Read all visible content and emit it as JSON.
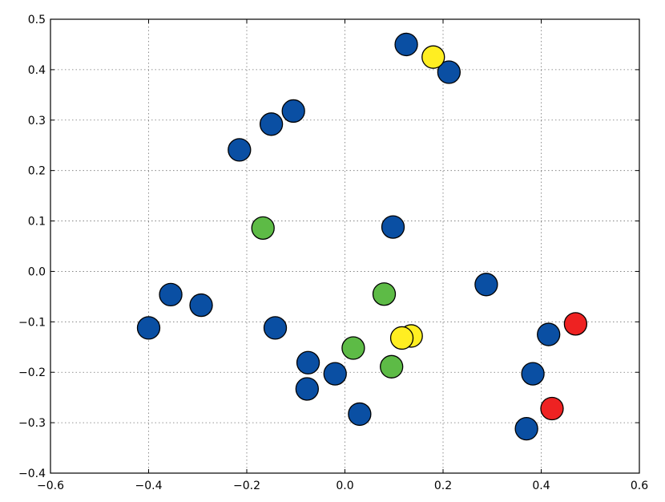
{
  "chart_data": {
    "type": "scatter",
    "title": "",
    "xlabel": "",
    "ylabel": "",
    "xlim": [
      -0.6,
      0.6
    ],
    "ylim": [
      -0.4,
      0.5
    ],
    "grid": true,
    "xticks": [
      -0.6,
      -0.4,
      -0.2,
      0.0,
      0.2,
      0.4,
      0.6
    ],
    "yticks": [
      -0.4,
      -0.3,
      -0.2,
      -0.1,
      0.0,
      0.1,
      0.2,
      0.3,
      0.4,
      0.5
    ],
    "xtick_labels": [
      "−0.6",
      "−0.4",
      "−0.2",
      "0.0",
      "0.2",
      "0.4",
      "0.6"
    ],
    "ytick_labels": [
      "−0.4",
      "−0.3",
      "−0.2",
      "−0.1",
      "0.0",
      "0.1",
      "0.2",
      "0.3",
      "0.4",
      "0.5"
    ],
    "colors": {
      "blue": "#0a4fa3",
      "green": "#5dbb46",
      "yellow": "#ffee22",
      "red": "#ee2222"
    },
    "series": [
      {
        "color": "blue",
        "points": [
          [
            0.125,
            0.45
          ],
          [
            0.212,
            0.395
          ],
          [
            -0.105,
            0.318
          ],
          [
            -0.15,
            0.292
          ],
          [
            -0.215,
            0.241
          ],
          [
            0.098,
            0.088
          ],
          [
            -0.355,
            -0.046
          ],
          [
            -0.293,
            -0.067
          ],
          [
            -0.4,
            -0.112
          ],
          [
            -0.142,
            -0.112
          ],
          [
            0.288,
            -0.026
          ],
          [
            0.415,
            -0.125
          ],
          [
            0.383,
            -0.203
          ],
          [
            0.37,
            -0.312
          ],
          [
            -0.075,
            -0.181
          ],
          [
            -0.02,
            -0.203
          ],
          [
            -0.077,
            -0.233
          ],
          [
            0.03,
            -0.283
          ]
        ]
      },
      {
        "color": "green",
        "points": [
          [
            -0.167,
            0.086
          ],
          [
            0.08,
            -0.045
          ],
          [
            0.017,
            -0.152
          ],
          [
            0.095,
            -0.189
          ]
        ]
      },
      {
        "color": "yellow",
        "points": [
          [
            0.18,
            0.425
          ],
          [
            0.135,
            -0.128
          ],
          [
            0.116,
            -0.132
          ]
        ]
      },
      {
        "color": "red",
        "points": [
          [
            0.47,
            -0.104
          ],
          [
            0.422,
            -0.272
          ]
        ]
      }
    ]
  }
}
